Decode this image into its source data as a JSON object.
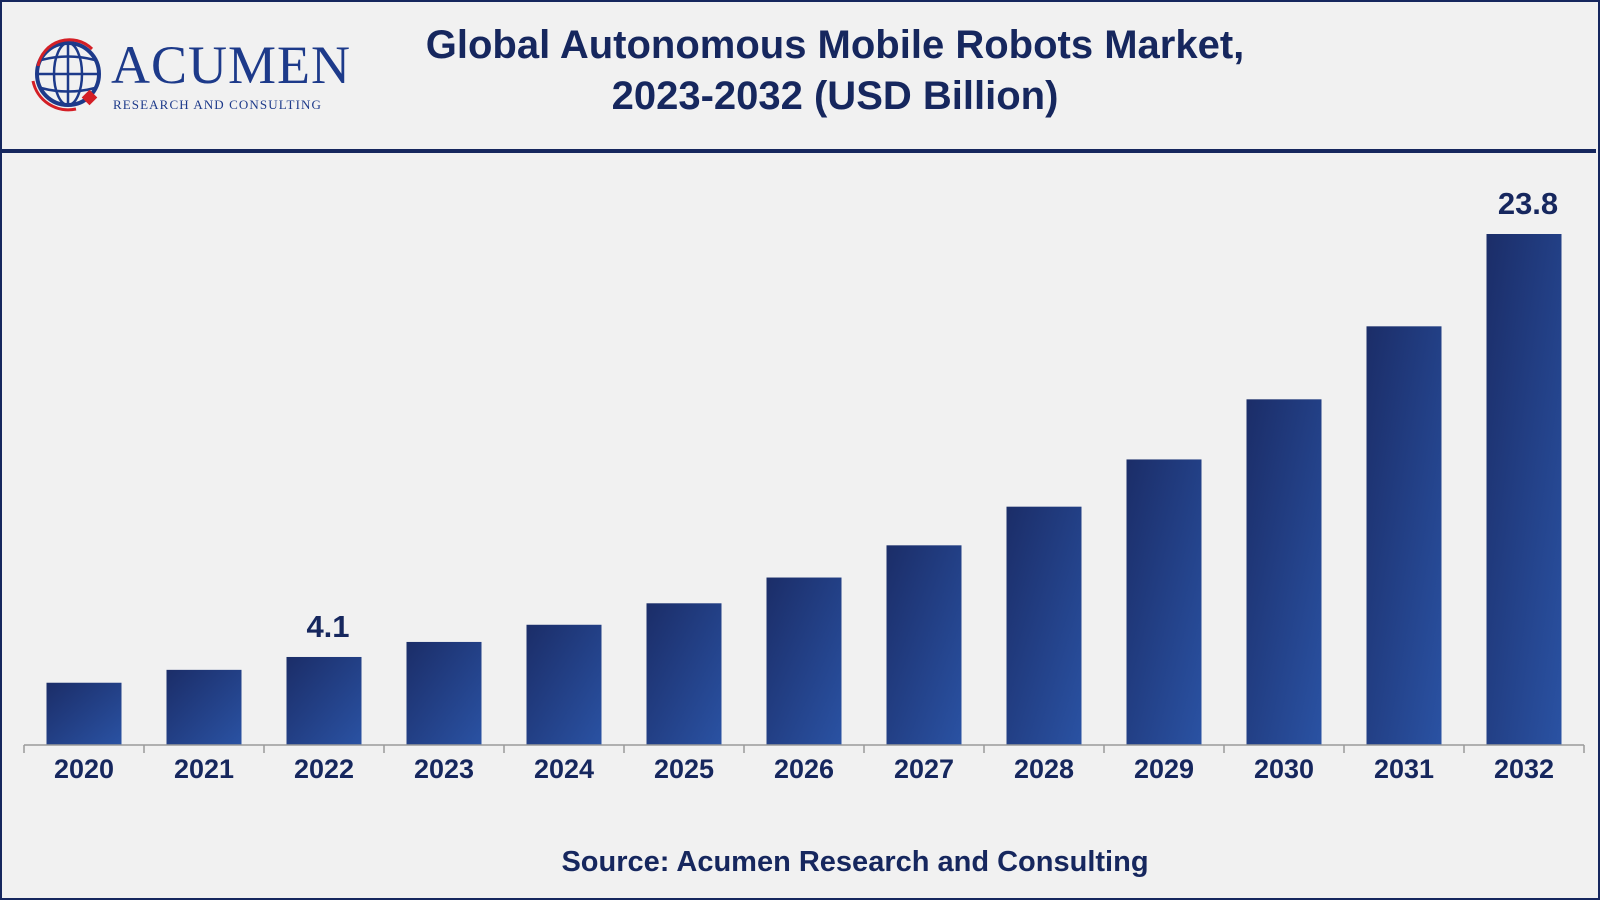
{
  "header": {
    "logo_word": "Acumen",
    "logo_tagline": "RESEARCH AND CONSULTING",
    "title_line1": "Global Autonomous Mobile Robots Market,",
    "title_line2": "2023-2032 (USD Billion)"
  },
  "colors": {
    "navy": "#16275e",
    "bar_top": "#1b2d68",
    "bar_bottom": "#2a52a3",
    "logo_red": "#d41f26",
    "background": "#f1f1f1"
  },
  "chart_data": {
    "type": "bar",
    "title": "Global Autonomous Mobile Robots Market, 2023-2032 (USD Billion)",
    "categories": [
      "2020",
      "2021",
      "2022",
      "2023",
      "2024",
      "2025",
      "2026",
      "2027",
      "2028",
      "2029",
      "2030",
      "2031",
      "2032"
    ],
    "values": [
      2.9,
      3.5,
      4.1,
      4.8,
      5.6,
      6.6,
      7.8,
      9.3,
      11.1,
      13.3,
      16.1,
      19.5,
      23.8
    ],
    "data_labels": [
      {
        "category": "2022",
        "text": "4.1"
      },
      {
        "category": "2032",
        "text": "23.8"
      }
    ],
    "xlabel": "",
    "ylabel": "",
    "ylim": [
      0,
      23.8
    ],
    "grid": false,
    "legend": "none"
  },
  "footer": {
    "source": "Source: Acumen Research and Consulting"
  }
}
